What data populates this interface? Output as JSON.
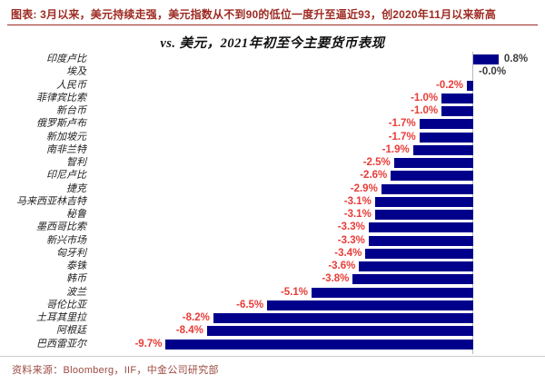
{
  "header": {
    "title": "图表: 3月以来，美元持续走强，美元指数从不到90的低位一度升至逼近93，创2020年11月以来新高"
  },
  "chart": {
    "title": "vs. 美元，2021年初至今主要货币表现"
  },
  "chart_data": {
    "type": "bar",
    "orientation": "horizontal",
    "title": "vs. 美元，2021年初至今主要货币表现",
    "unit": "%",
    "categories": [
      "印度卢比",
      "埃及",
      "人民币",
      "菲律宾比索",
      "新台币",
      "俄罗斯卢布",
      "新加坡元",
      "南非兰特",
      "智利",
      "印尼卢比",
      "捷克",
      "马来西亚林吉特",
      "秘鲁",
      "墨西哥比索",
      "新兴市场",
      "匈牙利",
      "泰铢",
      "韩币",
      "波兰",
      "哥伦比亚",
      "土耳其里拉",
      "阿根廷",
      "巴西雷亚尔"
    ],
    "values": [
      0.8,
      -0.0,
      -0.2,
      -1.0,
      -1.0,
      -1.7,
      -1.7,
      -1.9,
      -2.5,
      -2.6,
      -2.9,
      -3.1,
      -3.1,
      -3.3,
      -3.3,
      -3.4,
      -3.6,
      -3.8,
      -5.1,
      -6.5,
      -8.2,
      -8.4,
      -9.7
    ],
    "value_labels": [
      "0.8%",
      "-0.0%",
      "-0.2%",
      "-1.0%",
      "-1.0%",
      "-1.7%",
      "-1.7%",
      "-1.9%",
      "-2.5%",
      "-2.6%",
      "-2.9%",
      "-3.1%",
      "-3.1%",
      "-3.3%",
      "-3.3%",
      "-3.4%",
      "-3.6%",
      "-3.8%",
      "-5.1%",
      "-6.5%",
      "-8.2%",
      "-8.4%",
      "-9.7%"
    ],
    "xlim": [
      -10.5,
      1.2
    ],
    "grid": false,
    "legend": false,
    "bar_color": "#00008B",
    "negative_label_color": "#e83c38",
    "positive_label_color": "#3c3c3c",
    "axis_color": "#b8b8b8"
  },
  "footer": {
    "source": "资料来源：Bloomberg，IIF，中金公司研究部"
  }
}
